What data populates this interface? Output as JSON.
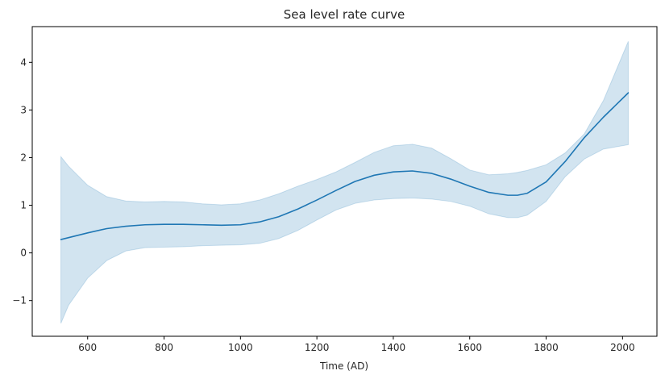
{
  "chart_data": {
    "type": "line",
    "title": "Sea level rate curve",
    "xlabel": "Time (AD)",
    "ylabel": "",
    "xlim": [
      455,
      2090
    ],
    "ylim": [
      -1.75,
      4.75
    ],
    "xticks": [
      600,
      800,
      1000,
      1200,
      1400,
      1600,
      1800,
      2000
    ],
    "yticks": [
      -1,
      0,
      1,
      2,
      3,
      4
    ],
    "grid": false,
    "colors": {
      "line": "#1f77b4",
      "band": "#1f77b4"
    },
    "series": [
      {
        "x": [
          530,
          550,
          600,
          650,
          700,
          750,
          800,
          850,
          900,
          950,
          1000,
          1050,
          1100,
          1150,
          1200,
          1250,
          1300,
          1350,
          1400,
          1450,
          1500,
          1550,
          1600,
          1650,
          1700,
          1725,
          1750,
          1800,
          1850,
          1900,
          1950,
          2015
        ],
        "mean": [
          0.28,
          0.32,
          0.42,
          0.51,
          0.56,
          0.59,
          0.6,
          0.6,
          0.59,
          0.58,
          0.59,
          0.65,
          0.76,
          0.92,
          1.11,
          1.31,
          1.5,
          1.63,
          1.7,
          1.72,
          1.67,
          1.55,
          1.4,
          1.27,
          1.21,
          1.21,
          1.25,
          1.49,
          1.92,
          2.42,
          2.85,
          3.36
        ],
        "lower": [
          -1.48,
          -1.1,
          -0.53,
          -0.16,
          0.04,
          0.11,
          0.12,
          0.13,
          0.15,
          0.16,
          0.17,
          0.2,
          0.3,
          0.47,
          0.69,
          0.9,
          1.04,
          1.11,
          1.14,
          1.15,
          1.13,
          1.08,
          0.98,
          0.82,
          0.74,
          0.74,
          0.79,
          1.08,
          1.6,
          1.97,
          2.18,
          2.27
        ],
        "upper": [
          2.02,
          1.82,
          1.42,
          1.18,
          1.09,
          1.07,
          1.08,
          1.07,
          1.03,
          1.01,
          1.03,
          1.11,
          1.24,
          1.4,
          1.54,
          1.7,
          1.9,
          2.11,
          2.25,
          2.28,
          2.2,
          1.98,
          1.74,
          1.64,
          1.66,
          1.69,
          1.73,
          1.85,
          2.1,
          2.5,
          3.2,
          4.44
        ]
      }
    ]
  }
}
